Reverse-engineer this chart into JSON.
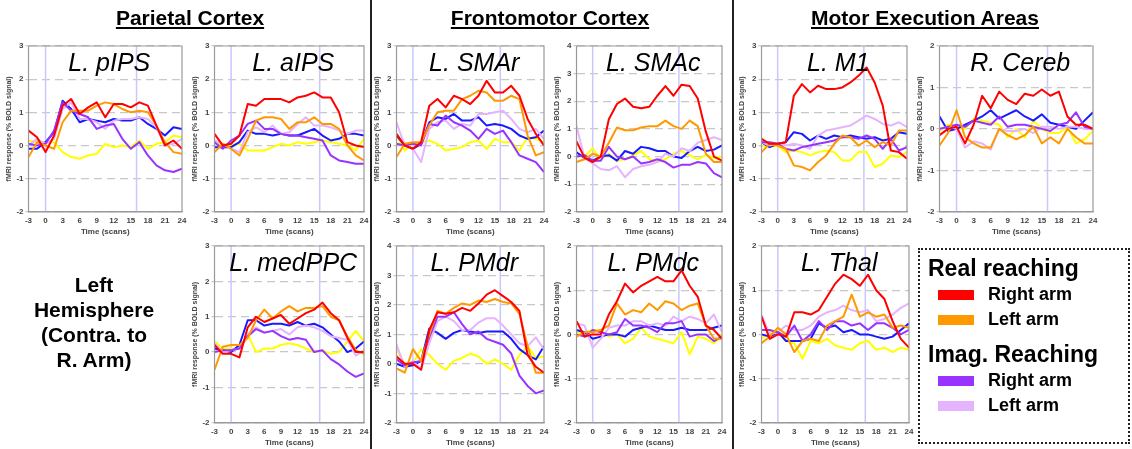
{
  "chart_data": [
    {
      "type": "other",
      "annotations": [
        "Parietal Cortex",
        "Frontomotor Cortex",
        "Motor Execution Areas",
        "Left Hemisphere (Contra. to R. Arm)"
      ]
    },
    {
      "type": "line",
      "title": "L. pIPS",
      "xlabel": "Time (scans)",
      "ylabel": "fMRI response (% BOLD signal)",
      "x": [
        -3,
        -1.5,
        0,
        1.5,
        3,
        4.5,
        6,
        7.5,
        9,
        10.5,
        12,
        13.5,
        15,
        16.5,
        18,
        19.5,
        21,
        22.5,
        24
      ],
      "xlim": [
        -3,
        24
      ],
      "xticks": [
        -3,
        0,
        3,
        6,
        9,
        12,
        15,
        18,
        21,
        24
      ],
      "ylim": [
        -2,
        3
      ],
      "yticks": [
        -2,
        -1,
        0,
        1,
        2,
        3
      ],
      "grid": "y",
      "ref_lines": [
        {
          "axis": "x",
          "value": 0,
          "color": "#c8c8ff"
        },
        {
          "axis": "x",
          "value": 16,
          "color": "#c8c8ff"
        }
      ],
      "series": [
        {
          "color": "#ff0000",
          "values": [
            0.45,
            0.25,
            -0.2,
            0.3,
            1.2,
            1.4,
            0.95,
            1.15,
            1.3,
            0.85,
            1.25,
            1.25,
            1.15,
            1.3,
            1.2,
            0.6,
            0,
            0.15,
            -0.1
          ]
        },
        {
          "color": "#ff9900",
          "values": [
            -0.35,
            0.1,
            0,
            -0.1,
            0.7,
            1.05,
            1.05,
            1.05,
            1.2,
            1.3,
            1.25,
            1.1,
            1.0,
            1.05,
            1.0,
            0.6,
            0.1,
            -0.2,
            -0.25
          ]
        },
        {
          "color": "#9933ff",
          "values": [
            0.05,
            0,
            0.05,
            0.45,
            1.3,
            1.05,
            0.95,
            0.85,
            0.5,
            0.6,
            0.65,
            0.2,
            -0.1,
            0.1,
            -0.3,
            -0.6,
            -0.75,
            -0.8,
            -0.7
          ]
        },
        {
          "color": "#e6b3ff",
          "values": [
            0,
            0.2,
            0.05,
            0.2,
            1.1,
            1.3,
            0.8,
            0.8,
            0.7,
            0.5,
            0.75,
            0.8,
            0.8,
            0.85,
            0.8,
            0.55,
            0,
            0.05,
            0.2
          ]
        },
        {
          "color": "#1a1aff",
          "values": [
            -0.1,
            -0.1,
            0.1,
            0.4,
            1.35,
            1.1,
            0.7,
            0.8,
            0.75,
            0.7,
            0.8,
            0.75,
            0.75,
            0.85,
            0.65,
            0.5,
            0.3,
            0.55,
            0.5
          ]
        },
        {
          "color": "#ffff00",
          "values": [
            0.15,
            0.1,
            0.1,
            0.1,
            -0.2,
            -0.35,
            -0.4,
            -0.3,
            -0.25,
            0.05,
            -0.05,
            0,
            -0.05,
            0.15,
            -0.1,
            0.05,
            0.1,
            0.3,
            0.25
          ]
        }
      ]
    },
    {
      "type": "line",
      "title": "L. aIPS",
      "xlabel": "Time (scans)",
      "ylabel": "fMRI response (% BOLD signal)",
      "x": [
        -3,
        -1.5,
        0,
        1.5,
        3,
        4.5,
        6,
        7.5,
        9,
        10.5,
        12,
        13.5,
        15,
        16.5,
        18,
        19.5,
        21,
        22.5,
        24
      ],
      "xlim": [
        -3,
        24
      ],
      "xticks": [
        -3,
        0,
        3,
        6,
        9,
        12,
        15,
        18,
        21,
        24
      ],
      "ylim": [
        -2,
        3
      ],
      "yticks": [
        -2,
        -1,
        0,
        1,
        2,
        3
      ],
      "grid": "y",
      "ref_lines": [
        {
          "axis": "x",
          "value": 0,
          "color": "#c8c8ff"
        },
        {
          "axis": "x",
          "value": 16,
          "color": "#c8c8ff"
        }
      ],
      "series": [
        {
          "color": "#ff0000",
          "values": [
            0.35,
            0,
            0.05,
            0.3,
            1.25,
            1.2,
            1.4,
            1.4,
            1.4,
            1.3,
            1.45,
            1.5,
            1.6,
            1.45,
            1.45,
            1.0,
            0.1,
            0,
            -0.05
          ]
        },
        {
          "color": "#ff9900",
          "values": [
            -0.2,
            0.05,
            -0.1,
            -0.3,
            0.2,
            0.75,
            0.85,
            0.85,
            0.8,
            0.5,
            0.7,
            0.7,
            0.85,
            0.65,
            0.65,
            0.5,
            0,
            -0.3,
            -0.45
          ]
        },
        {
          "color": "#9933ff",
          "values": [
            0.1,
            -0.1,
            0.15,
            0.3,
            0.65,
            0.75,
            0.5,
            0.5,
            0.35,
            0.3,
            0.3,
            0.25,
            0.2,
            0.15,
            -0.3,
            -0.45,
            -0.5,
            -0.55,
            -0.55
          ]
        },
        {
          "color": "#e6b3ff",
          "values": [
            0.15,
            0.05,
            -0.1,
            -0.2,
            0.4,
            0.55,
            0.4,
            0.6,
            0.35,
            0.4,
            0.65,
            0.85,
            0.6,
            0.6,
            0.55,
            0.45,
            0.35,
            0.45,
            0.45
          ]
        },
        {
          "color": "#1a1aff",
          "values": [
            -0.05,
            -0.05,
            -0.05,
            0.1,
            0.45,
            0.35,
            0.35,
            0.3,
            0.35,
            0.3,
            0.3,
            0.4,
            0.5,
            0.3,
            0.15,
            0.2,
            0.35,
            0.35,
            0.3
          ]
        },
        {
          "color": "#ffff00",
          "values": [
            0.05,
            0.05,
            0,
            0.05,
            -0.15,
            -0.15,
            -0.15,
            -0.05,
            0.05,
            0,
            0.1,
            0.05,
            0.1,
            0.15,
            0.1,
            0.05,
            0,
            -0.15,
            0.2
          ]
        }
      ]
    },
    {
      "type": "line",
      "title": "L. SMAr",
      "xlabel": "Time (scans)",
      "ylabel": "fMRI response (% BOLD signal)",
      "x": [
        -3,
        -1.5,
        0,
        1.5,
        3,
        4.5,
        6,
        7.5,
        9,
        10.5,
        12,
        13.5,
        15,
        16.5,
        18,
        19.5,
        21,
        22.5,
        24
      ],
      "xlim": [
        -3,
        24
      ],
      "xticks": [
        -3,
        0,
        3,
        6,
        9,
        12,
        15,
        18,
        21,
        24
      ],
      "ylim": [
        -2,
        3
      ],
      "yticks": [
        -2,
        -1,
        0,
        1,
        2,
        3
      ],
      "grid": "y",
      "ref_lines": [
        {
          "axis": "x",
          "value": 0,
          "color": "#c8c8ff"
        },
        {
          "axis": "x",
          "value": 16,
          "color": "#c8c8ff"
        }
      ],
      "series": [
        {
          "color": "#ff0000",
          "values": [
            0.35,
            0,
            -0.1,
            0.1,
            1.2,
            1.4,
            1.15,
            1.5,
            1.4,
            1.25,
            1.5,
            1.95,
            1.6,
            1.6,
            1.8,
            1.5,
            0.8,
            0.35,
            0
          ]
        },
        {
          "color": "#ff9900",
          "values": [
            -0.35,
            0.05,
            0.1,
            0.1,
            0.6,
            1.0,
            1.05,
            1.05,
            1.4,
            1.5,
            1.65,
            1.6,
            1.35,
            1.35,
            1.5,
            1.4,
            0.3,
            -0.3,
            -0.2
          ]
        },
        {
          "color": "#9933ff",
          "values": [
            0.05,
            0,
            0.05,
            0,
            0.65,
            0.6,
            0.9,
            0.7,
            0.6,
            0.45,
            0.2,
            0.5,
            0.35,
            0.45,
            0.1,
            -0.3,
            -0.4,
            -0.5,
            -0.8
          ]
        },
        {
          "color": "#e6b3ff",
          "values": [
            0.7,
            0,
            -0.1,
            -0.5,
            0.5,
            0.7,
            0.75,
            0.5,
            0.65,
            0.6,
            0.95,
            0.95,
            1.0,
            1.05,
            0.8,
            0.5,
            0.4,
            0.5,
            0.2
          ]
        },
        {
          "color": "#1a1aff",
          "values": [
            0.3,
            0,
            -0.1,
            0.05,
            0.7,
            0.85,
            0.8,
            0.95,
            0.75,
            0.75,
            0.85,
            0.6,
            0.65,
            0.6,
            0.5,
            0.3,
            0.2,
            0.25,
            0.45
          ]
        },
        {
          "color": "#ffff00",
          "values": [
            0.3,
            -0.15,
            0.05,
            0.1,
            0.15,
            0.05,
            -0.15,
            -0.1,
            -0.05,
            0.1,
            0.15,
            -0.1,
            0.2,
            0.1,
            0.1,
            -0.15,
            0.25,
            0.2,
            0.1
          ]
        }
      ]
    },
    {
      "type": "line",
      "title": "L. SMAc",
      "xlabel": "Time (scans)",
      "ylabel": "fMRI response (% BOLD signal)",
      "x": [
        -3,
        -1.5,
        0,
        1.5,
        3,
        4.5,
        6,
        7.5,
        9,
        10.5,
        12,
        13.5,
        15,
        16.5,
        18,
        19.5,
        21,
        22.5,
        24
      ],
      "xlim": [
        -3,
        24
      ],
      "xticks": [
        -3,
        0,
        3,
        6,
        9,
        12,
        15,
        18,
        21,
        24
      ],
      "ylim": [
        -2,
        4
      ],
      "yticks": [
        -2,
        -1,
        0,
        1,
        2,
        3,
        4
      ],
      "grid": "y",
      "ref_lines": [
        {
          "axis": "x",
          "value": 0,
          "color": "#c8c8ff"
        },
        {
          "axis": "x",
          "value": 16,
          "color": "#c8c8ff"
        }
      ],
      "series": [
        {
          "color": "#ff0000",
          "values": [
            0.55,
            -0.05,
            -0.2,
            0,
            1.35,
            1.9,
            2.1,
            1.8,
            1.75,
            1.8,
            2.2,
            2.55,
            2.2,
            2.6,
            2.55,
            2.1,
            0.9,
            0,
            -0.15
          ]
        },
        {
          "color": "#ff9900",
          "values": [
            -0.2,
            -0.1,
            0.1,
            0,
            0.5,
            1.05,
            0.95,
            0.95,
            1.05,
            1.1,
            1.1,
            1.3,
            1.1,
            1.0,
            1.3,
            1.1,
            0.1,
            -0.2,
            -0.2
          ]
        },
        {
          "color": "#9933ff",
          "values": [
            0,
            0.05,
            -0.15,
            -0.15,
            0.35,
            0,
            -0.1,
            0,
            -0.25,
            -0.2,
            -0.1,
            -0.2,
            -0.4,
            -0.3,
            -0.3,
            -0.2,
            -0.25,
            -0.6,
            -0.75
          ]
        },
        {
          "color": "#e6b3ff",
          "values": [
            1.1,
            -0.05,
            -0.25,
            -0.45,
            -0.5,
            -0.35,
            -0.75,
            -0.45,
            -0.35,
            -0.3,
            -0.2,
            0.1,
            0,
            0.3,
            0.2,
            0.5,
            0.6,
            0.7,
            0.6
          ]
        },
        {
          "color": "#1a1aff",
          "values": [
            0.15,
            -0.05,
            -0.15,
            0,
            0.05,
            -0.15,
            0.2,
            0.1,
            0.35,
            0.3,
            0.2,
            0.2,
            0,
            -0.05,
            0.2,
            0.35,
            0.2,
            0.25,
            0.4
          ]
        },
        {
          "color": "#ffff00",
          "values": [
            0,
            0,
            0.3,
            -0.1,
            0.1,
            -0.15,
            -0.1,
            0.05,
            0.2,
            -0.1,
            -0.2,
            -0.1,
            0.1,
            0.2,
            0.05,
            -0.1,
            0.05,
            -0.05,
            0
          ]
        }
      ]
    },
    {
      "type": "line",
      "title": "L. M1",
      "xlabel": "Time (scans)",
      "ylabel": "fMRI response (% BOLD signal)",
      "x": [
        -3,
        -1.5,
        0,
        1.5,
        3,
        4.5,
        6,
        7.5,
        9,
        10.5,
        12,
        13.5,
        15,
        16.5,
        18,
        19.5,
        21,
        22.5,
        24
      ],
      "xlim": [
        -3,
        24
      ],
      "xticks": [
        -3,
        0,
        3,
        6,
        9,
        12,
        15,
        18,
        21,
        24
      ],
      "ylim": [
        -2,
        3
      ],
      "yticks": [
        -2,
        -1,
        0,
        1,
        2,
        3
      ],
      "grid": "y",
      "ref_lines": [
        {
          "axis": "x",
          "value": 0,
          "color": "#c8c8ff"
        },
        {
          "axis": "x",
          "value": 16,
          "color": "#c8c8ff"
        }
      ],
      "series": [
        {
          "color": "#ff0000",
          "values": [
            0.2,
            0.05,
            0.05,
            0.1,
            1.5,
            1.85,
            1.6,
            1.8,
            1.7,
            1.7,
            1.75,
            1.9,
            2.1,
            2.35,
            1.9,
            1.2,
            -0.15,
            -0.2,
            -0.4
          ]
        },
        {
          "color": "#ff9900",
          "values": [
            -0.2,
            0.05,
            0,
            -0.1,
            -0.6,
            -0.65,
            -0.75,
            -0.5,
            -0.3,
            0.05,
            0.3,
            0.25,
            0,
            0.15,
            -0.05,
            0.1,
            0,
            0.45,
            0.45
          ]
        },
        {
          "color": "#9933ff",
          "values": [
            0.1,
            0.1,
            0.05,
            -0.1,
            -0.15,
            -0.05,
            0,
            0.05,
            0.1,
            0.15,
            0.25,
            0.25,
            0.2,
            0.3,
            0.2,
            -0.1,
            0.2,
            -0.15,
            -0.05
          ]
        },
        {
          "color": "#e6b3ff",
          "values": [
            0.1,
            0,
            0.05,
            0,
            0.05,
            0,
            -0.1,
            0.3,
            0.45,
            0.5,
            0.55,
            0.6,
            0.75,
            0.9,
            0.8,
            0.65,
            0.6,
            0.7,
            0.55
          ]
        },
        {
          "color": "#1a1aff",
          "values": [
            0.1,
            -0.05,
            0.05,
            0.1,
            0.4,
            0.35,
            0.15,
            0.3,
            0.2,
            0.3,
            0.25,
            0.3,
            0.25,
            0.2,
            0.25,
            0.15,
            0.2,
            0.4,
            0.35
          ]
        },
        {
          "color": "#ffff00",
          "values": [
            0,
            -0.05,
            0,
            -0.2,
            -0.15,
            -0.2,
            -0.3,
            -0.2,
            -0.15,
            -0.2,
            -0.45,
            -0.45,
            -0.2,
            -0.2,
            -0.65,
            -0.55,
            -0.3,
            -0.35,
            -0.2
          ]
        }
      ]
    },
    {
      "type": "line",
      "title": "R. Cereb",
      "xlabel": "Time (scans)",
      "ylabel": "fMRI response (% BOLD signal)",
      "x": [
        -3,
        -1.5,
        0,
        1.5,
        3,
        4.5,
        6,
        7.5,
        9,
        10.5,
        12,
        13.5,
        15,
        16.5,
        18,
        19.5,
        21,
        22.5,
        24
      ],
      "xlim": [
        -3,
        24
      ],
      "xticks": [
        -3,
        0,
        3,
        6,
        9,
        12,
        15,
        18,
        21,
        24
      ],
      "ylim": [
        -2,
        2
      ],
      "yticks": [
        -2,
        -1,
        0,
        1,
        2
      ],
      "grid": "y",
      "ref_lines": [
        {
          "axis": "x",
          "value": 0,
          "color": "#c8c8ff"
        },
        {
          "axis": "x",
          "value": 16,
          "color": "#c8c8ff"
        }
      ],
      "series": [
        {
          "color": "#ff0000",
          "values": [
            -0.15,
            0,
            0.05,
            -0.35,
            0.1,
            0.8,
            0.5,
            0.9,
            0.7,
            0.6,
            0.85,
            0.8,
            0.95,
            0.8,
            0.9,
            0.3,
            0.1,
            0.1,
            0
          ]
        },
        {
          "color": "#ff9900",
          "values": [
            -0.4,
            -0.1,
            0.45,
            -0.2,
            -0.35,
            -0.45,
            -0.45,
            0,
            -0.15,
            -0.25,
            -0.15,
            0.05,
            -0.35,
            -0.2,
            -0.35,
            0,
            -0.2,
            -0.35,
            -0.35
          ]
        },
        {
          "color": "#9933ff",
          "values": [
            0,
            0.05,
            0.1,
            0.05,
            0.2,
            0.15,
            0.1,
            0.3,
            0.05,
            0.1,
            0.1,
            0.05,
            0,
            -0.05,
            0.1,
            0.15,
            0.4,
            0.05,
            0
          ]
        },
        {
          "color": "#e6b3ff",
          "values": [
            0,
            0.05,
            0,
            -0.45,
            -0.3,
            -0.35,
            -0.5,
            0,
            -0.05,
            -0.05,
            0,
            -0.1,
            0.05,
            0.05,
            0,
            0.05,
            0.05,
            0,
            0
          ]
        },
        {
          "color": "#1a1aff",
          "values": [
            0.3,
            -0.05,
            0,
            0.1,
            0.2,
            0.3,
            0.45,
            0.25,
            0.35,
            0.45,
            0.3,
            0.2,
            0.35,
            0.15,
            0.1,
            0.05,
            0,
            0.2,
            0.4
          ]
        },
        {
          "color": "#ffff00",
          "values": [
            -0.05,
            0.1,
            0.05,
            0,
            0.25,
            0.2,
            0.15,
            0.1,
            -0.2,
            0,
            -0.2,
            0.2,
            0,
            -0.1,
            -0.1,
            0.05,
            -0.35,
            -0.25,
            -0.05
          ]
        }
      ]
    },
    {
      "type": "line",
      "title": "L. medPPC",
      "xlabel": "Time (scans)",
      "ylabel": "fMRI response (% BOLD signal)",
      "x": [
        -3,
        -1.5,
        0,
        1.5,
        3,
        4.5,
        6,
        7.5,
        9,
        10.5,
        12,
        13.5,
        15,
        16.5,
        18,
        19.5,
        21,
        22.5,
        24
      ],
      "xlim": [
        -3,
        24
      ],
      "xticks": [
        -3,
        0,
        3,
        6,
        9,
        12,
        15,
        18,
        21,
        24
      ],
      "ylim": [
        -2,
        3
      ],
      "yticks": [
        -2,
        -1,
        0,
        1,
        2,
        3
      ],
      "grid": "y",
      "ref_lines": [
        {
          "axis": "x",
          "value": 0,
          "color": "#c8c8ff"
        },
        {
          "axis": "x",
          "value": 16,
          "color": "#c8c8ff"
        }
      ],
      "series": [
        {
          "color": "#ff0000",
          "values": [
            0.2,
            -0.05,
            -0.05,
            -0.15,
            0.7,
            1.0,
            0.85,
            0.95,
            1.05,
            0.8,
            0.95,
            1.1,
            1.2,
            1.4,
            1.1,
            0.9,
            0.4,
            0,
            0
          ]
        },
        {
          "color": "#ff9900",
          "values": [
            -0.5,
            0.15,
            0.2,
            0.2,
            0.4,
            0.9,
            1.2,
            0.95,
            1.15,
            1.3,
            1.15,
            1.25,
            1.25,
            1.3,
            1.0,
            0.9,
            0.45,
            0.05,
            -0.05
          ]
        },
        {
          "color": "#9933ff",
          "values": [
            0,
            0.05,
            0.05,
            0.1,
            0.45,
            0.65,
            0.55,
            0.6,
            0.45,
            0.35,
            0.4,
            0.35,
            0,
            0.05,
            -0.2,
            -0.35,
            -0.55,
            -0.7,
            -0.6
          ]
        },
        {
          "color": "#e6b3ff",
          "values": [
            0.25,
            0,
            0.05,
            0.1,
            0.5,
            0.7,
            0.55,
            0.6,
            0.65,
            0.5,
            0.7,
            0.75,
            0.7,
            0.6,
            0.45,
            0.4,
            0.35,
            -0.1,
            0.05
          ]
        },
        {
          "color": "#1a1aff",
          "values": [
            0.1,
            0.05,
            0,
            0.2,
            0.9,
            0.9,
            0.75,
            0.8,
            0.8,
            0.75,
            0.85,
            0.75,
            0.8,
            0.7,
            0.5,
            0.3,
            0,
            0.1,
            0.3
          ]
        },
        {
          "color": "#ffff00",
          "values": [
            0.3,
            0.1,
            0.1,
            0.1,
            0.5,
            0,
            0.1,
            0.1,
            0.2,
            0.25,
            0.2,
            0.1,
            0,
            0.05,
            -0.05,
            0,
            0.3,
            0.6,
            0.3
          ]
        }
      ]
    },
    {
      "type": "line",
      "title": "L. PMdr",
      "xlabel": "Time (scans)",
      "ylabel": "fMRI response (% BOLD signal)",
      "x": [
        -3,
        -1.5,
        0,
        1.5,
        3,
        4.5,
        6,
        7.5,
        9,
        10.5,
        12,
        13.5,
        15,
        16.5,
        18,
        19.5,
        21,
        22.5,
        24
      ],
      "xlim": [
        -3,
        24
      ],
      "xticks": [
        -3,
        0,
        3,
        6,
        9,
        12,
        15,
        18,
        21,
        24
      ],
      "ylim": [
        -2,
        4
      ],
      "yticks": [
        -2,
        -1,
        0,
        1,
        2,
        3,
        4
      ],
      "grid": "y",
      "ref_lines": [
        {
          "axis": "x",
          "value": 0,
          "color": "#c8c8ff"
        },
        {
          "axis": "x",
          "value": 16,
          "color": "#c8c8ff"
        }
      ],
      "series": [
        {
          "color": "#ff0000",
          "values": [
            0.25,
            0,
            0,
            -0.2,
            1.15,
            1.75,
            1.7,
            1.75,
            1.9,
            1.8,
            2.05,
            2.35,
            2.5,
            2.3,
            2.1,
            1.8,
            0.3,
            -0.1,
            -0.3
          ]
        },
        {
          "color": "#ff9900",
          "values": [
            -0.15,
            -0.3,
            0.5,
            0.1,
            1.0,
            1.8,
            1.7,
            1.9,
            2.05,
            2.0,
            2.15,
            2.1,
            2.2,
            2.1,
            2.05,
            1.7,
            0.6,
            -0.3,
            -0.3
          ]
        },
        {
          "color": "#9933ff",
          "values": [
            0.15,
            -0.05,
            0.05,
            0.1,
            0.9,
            1.6,
            1.6,
            1.75,
            1.35,
            1.0,
            1.1,
            0.85,
            0.75,
            0.65,
            0.35,
            -0.4,
            -0.75,
            -1.0,
            -0.9
          ]
        },
        {
          "color": "#e6b3ff",
          "values": [
            0.65,
            -0.1,
            0.1,
            -0.2,
            0.7,
            1.45,
            1.6,
            1.45,
            1.15,
            1.15,
            1.4,
            1.55,
            1.55,
            1.3,
            1.0,
            0.7,
            0.6,
            0.9,
            0.5
          ]
        },
        {
          "color": "#1a1aff",
          "values": [
            0,
            -0.1,
            -0.05,
            0.1,
            1.2,
            1.05,
            0.85,
            1.05,
            1.15,
            1.1,
            1.05,
            1.1,
            1.1,
            1.1,
            0.85,
            0.5,
            0.3,
            0.15,
            0.6
          ]
        },
        {
          "color": "#ffff00",
          "values": [
            0.5,
            0,
            0,
            0.5,
            0.3,
            0,
            -0.2,
            0.1,
            0.2,
            0.35,
            0.25,
            0,
            0.15,
            0,
            -0.2,
            0.3,
            0.6,
            0.2,
            0.25
          ]
        }
      ]
    },
    {
      "type": "line",
      "title": "L. PMdc",
      "xlabel": "Time (scans)",
      "ylabel": "fMRI response (% BOLD signal)",
      "x": [
        -3,
        -1.5,
        0,
        1.5,
        3,
        4.5,
        6,
        7.5,
        9,
        10.5,
        12,
        13.5,
        15,
        16.5,
        18,
        19.5,
        21,
        22.5,
        24
      ],
      "xlim": [
        -3,
        24
      ],
      "xticks": [
        -3,
        0,
        3,
        6,
        9,
        12,
        15,
        18,
        21,
        24
      ],
      "ylim": [
        -2,
        2
      ],
      "yticks": [
        -2,
        -1,
        0,
        1,
        2
      ],
      "grid": "y",
      "ref_lines": [
        {
          "axis": "x",
          "value": 0,
          "color": "#c8c8ff"
        },
        {
          "axis": "x",
          "value": 16,
          "color": "#c8c8ff"
        }
      ],
      "series": [
        {
          "color": "#ff0000",
          "values": [
            0.3,
            -0.05,
            0,
            0,
            0.45,
            0.75,
            1.15,
            0.95,
            1.1,
            1.2,
            1.3,
            1.2,
            1.2,
            1.45,
            1.1,
            0.85,
            0.2,
            0.1,
            -0.1
          ]
        },
        {
          "color": "#ff9900",
          "values": [
            -0.05,
            0.05,
            0.05,
            0.1,
            0.2,
            0.7,
            0.45,
            0.55,
            0.5,
            0.7,
            0.55,
            0.75,
            0.7,
            0.55,
            0.65,
            0.7,
            0.2,
            -0.1,
            -0.1
          ]
        },
        {
          "color": "#9933ff",
          "values": [
            0,
            -0.05,
            0.1,
            0.05,
            0,
            0.05,
            0.35,
            0.2,
            0.2,
            0.15,
            0.05,
            0.25,
            0.25,
            0.3,
            -0.05,
            0,
            0,
            -0.15,
            -0.05
          ]
        },
        {
          "color": "#e6b3ff",
          "values": [
            0.25,
            0.2,
            -0.3,
            -0.1,
            0.15,
            0.2,
            0.2,
            0.3,
            0.3,
            0.2,
            0.25,
            0.2,
            0.4,
            0.3,
            0.4,
            0.35,
            0.25,
            0.45,
            0.05
          ]
        },
        {
          "color": "#1a1aff",
          "values": [
            0.1,
            0.05,
            -0.1,
            -0.05,
            0,
            0,
            -0.05,
            0.1,
            0.15,
            0.2,
            0.15,
            0.1,
            0.1,
            0.15,
            0.1,
            0.1,
            0.1,
            0.15,
            0.2
          ]
        },
        {
          "color": "#ffff00",
          "values": [
            0.05,
            0.05,
            0.1,
            0.1,
            -0.05,
            0,
            -0.2,
            -0.1,
            0.15,
            -0.05,
            -0.1,
            -0.15,
            -0.2,
            0.05,
            -0.45,
            -0.05,
            -0.1,
            -0.2,
            0
          ]
        }
      ]
    },
    {
      "type": "line",
      "title": "L. Thal",
      "xlabel": "Time (scans)",
      "ylabel": "fMRI response (% BOLD signal)",
      "x": [
        -3,
        -1.5,
        0,
        1.5,
        3,
        4.5,
        6,
        7.5,
        9,
        10.5,
        12,
        13.5,
        15,
        16.5,
        18,
        19.5,
        21,
        22.5,
        24
      ],
      "xlim": [
        -3,
        24
      ],
      "xticks": [
        -3,
        0,
        3,
        6,
        9,
        12,
        15,
        18,
        21,
        24
      ],
      "ylim": [
        -2,
        2
      ],
      "yticks": [
        -2,
        -1,
        0,
        1,
        2
      ],
      "grid": "y",
      "legend": "right",
      "annotations": [
        "Real reaching",
        "Imag. Reaching"
      ],
      "ref_lines": [
        {
          "axis": "x",
          "value": 0,
          "color": "#c8c8ff"
        },
        {
          "axis": "x",
          "value": 16,
          "color": "#c8c8ff"
        }
      ],
      "series": [
        {
          "name": "Right arm",
          "color": "#ff0000",
          "values": [
            0.4,
            -0.1,
            0,
            -0.05,
            0.5,
            0.5,
            0.45,
            0.55,
            0.85,
            1.15,
            1.35,
            1.25,
            1.1,
            1.35,
            1.0,
            0.8,
            0.3,
            -0.1,
            -0.3
          ]
        },
        {
          "name": "Left arm",
          "color": "#ff9900",
          "values": [
            -0.2,
            -0.05,
            0.15,
            0,
            -0.4,
            -0.15,
            -0.1,
            -0.15,
            0.2,
            0.3,
            0.4,
            0.9,
            0.4,
            0.5,
            0.4,
            0.45,
            0.15,
            0.2,
            0.15
          ]
        },
        {
          "name": "Right arm",
          "color": "#9933ff",
          "values": [
            0.1,
            0.1,
            0.05,
            -0.05,
            0.2,
            -0.15,
            0,
            0.3,
            0.1,
            0.3,
            0.3,
            0.2,
            0.25,
            0.1,
            0.25,
            0.25,
            0.15,
            0,
            0.1
          ]
        },
        {
          "name": "Left arm",
          "color": "#e6b3ff",
          "values": [
            0.45,
            0,
            0.05,
            0.2,
            0.1,
            0.1,
            0.2,
            0.4,
            0.5,
            0.55,
            0.65,
            0.55,
            0.5,
            0.55,
            0.3,
            0.35,
            0.45,
            0.6,
            0.7
          ]
        },
        {
          "color": "#1a1aff",
          "values": [
            0,
            -0.05,
            0.05,
            -0.15,
            -0.15,
            -0.15,
            -0.1,
            0.25,
            0.15,
            0.2,
            0.05,
            0.1,
            0,
            0,
            -0.05,
            -0.1,
            -0.05,
            0.1,
            0.25
          ]
        },
        {
          "color": "#ffff00",
          "values": [
            -0.1,
            0.05,
            0.1,
            -0.15,
            -0.2,
            -0.55,
            -0.15,
            -0.2,
            -0.1,
            -0.25,
            -0.3,
            -0.35,
            -0.2,
            -0.15,
            -0.35,
            -0.3,
            -0.4,
            -0.3,
            -0.35
          ]
        }
      ]
    }
  ]
}
